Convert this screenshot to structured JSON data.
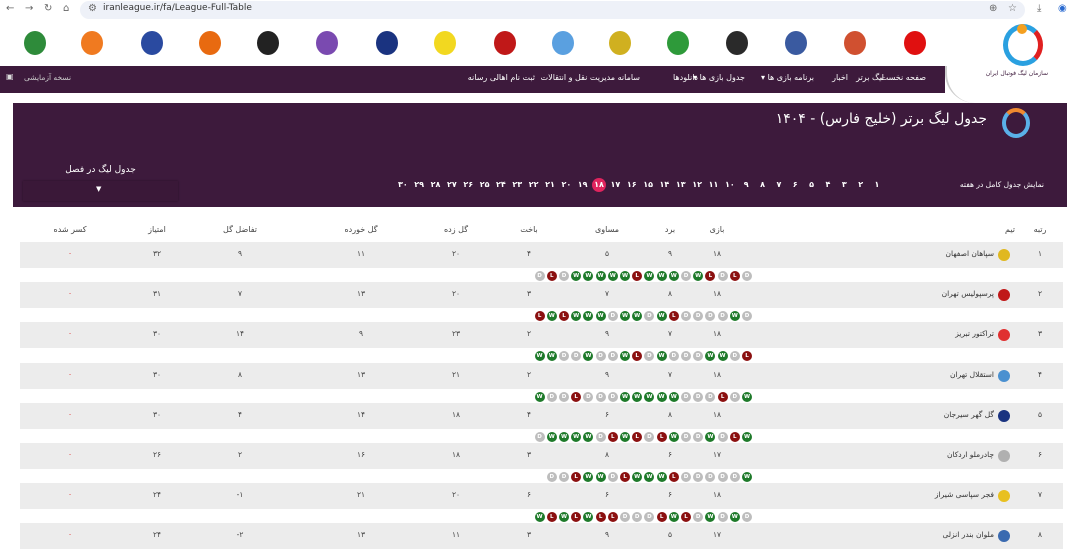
{
  "browser": {
    "url": "iranleague.ir/fa/League-Full-Table"
  },
  "team_logos": [
    "#2e8b3a",
    "#f07a20",
    "#2a4aa0",
    "#e86a10",
    "#222222",
    "#7a4ab0",
    "#1a3380",
    "#f2d820",
    "#c01818",
    "#5aa0e0",
    "#d0b020",
    "#2e9a3a",
    "#2a2a2a",
    "#3a5aa0",
    "#d05030",
    "#e01010"
  ],
  "nav": {
    "items": [
      "صفحه نخست",
      "لیگ برتر",
      "اخبار",
      "برنامه بازی ها ▾",
      "جدول بازی ها ▾",
      "دانلودها",
      "سامانه مدیریت نقل و انتقالات",
      "ثبت نام اهالی رسانه"
    ],
    "beta": "نسخه آزمایشی"
  },
  "title": "جدول لیگ برتر (خلیج فارس) - ۱۴۰۴",
  "weeks": {
    "label": "نمایش جدول کامل در هفته",
    "items": [
      "۱",
      "۲",
      "۳",
      "۴",
      "۵",
      "۶",
      "۷",
      "۸",
      "۹",
      "۱۰",
      "۱۱",
      "۱۲",
      "۱۳",
      "۱۴",
      "۱۵",
      "۱۶",
      "۱۷",
      "۱۸",
      "۱۹",
      "۲۰",
      "۲۱",
      "۲۲",
      "۲۳",
      "۲۴",
      "۲۵",
      "۲۶",
      "۲۷",
      "۲۸",
      "۲۹",
      "۳۰"
    ],
    "active": "۱۸"
  },
  "season": {
    "label": "جدول لیگ در فصل",
    "value": ""
  },
  "table": {
    "headers": {
      "rank": "رتبه",
      "team": "تیم",
      "played": "بازی",
      "won": "برد",
      "drawn": "مساوی",
      "lost": "باخت",
      "gf": "گل زده",
      "ga": "گل خورده",
      "gd": "تفاضل گل",
      "pts": "امتیاز",
      "ded": "کسر شده"
    },
    "rows": [
      {
        "rank": "۱",
        "team": "سپاهان اصفهان",
        "logo": "#e0b820",
        "played": "۱۸",
        "won": "۹",
        "drawn": "۵",
        "lost": "۴",
        "gf": "۲۰",
        "ga": "۱۱",
        "gd": "۹",
        "pts": "۳۲",
        "ded": "۰",
        "form": "DLDWWWWWLWWWDWLDLD"
      },
      {
        "rank": "۲",
        "team": "پرسپولیس تهران",
        "logo": "#c01818",
        "played": "۱۸",
        "won": "۸",
        "drawn": "۷",
        "lost": "۳",
        "gf": "۲۰",
        "ga": "۱۳",
        "gd": "۷",
        "pts": "۳۱",
        "ded": "۰",
        "form": "LWLWWWDWWDWLDDDDWD"
      },
      {
        "rank": "۳",
        "team": "تراکتور تبریز",
        "logo": "#e03030",
        "played": "۱۸",
        "won": "۷",
        "drawn": "۹",
        "lost": "۲",
        "gf": "۲۳",
        "ga": "۹",
        "gd": "۱۴",
        "pts": "۳۰",
        "ded": "۰",
        "form": "WWDDWDDWLDWDDDWWDL"
      },
      {
        "rank": "۴",
        "team": "استقلال تهران",
        "logo": "#4a90d0",
        "played": "۱۸",
        "won": "۷",
        "drawn": "۹",
        "lost": "۲",
        "gf": "۲۱",
        "ga": "۱۳",
        "gd": "۸",
        "pts": "۳۰",
        "ded": "۰",
        "form": "WDDLDDDWWWWWDDDLDW"
      },
      {
        "rank": "۵",
        "team": "گل گهر سیرجان",
        "logo": "#1a3380",
        "played": "۱۸",
        "won": "۸",
        "drawn": "۶",
        "lost": "۴",
        "gf": "۱۸",
        "ga": "۱۴",
        "gd": "۴",
        "pts": "۳۰",
        "ded": "۰",
        "form": "DWWWWDLWLDLWDDWDLW"
      },
      {
        "rank": "۶",
        "team": "چادرملو اردکان",
        "logo": "#b0b0b0",
        "played": "۱۷",
        "won": "۶",
        "drawn": "۸",
        "lost": "۳",
        "gf": "۱۸",
        "ga": "۱۶",
        "gd": "۲",
        "pts": "۲۶",
        "ded": "۰",
        "form": "DDLWWDLWWWLDDDDDW"
      },
      {
        "rank": "۷",
        "team": "فجر سپاسی شیراز",
        "logo": "#e8c020",
        "played": "۱۸",
        "won": "۶",
        "drawn": "۶",
        "lost": "۶",
        "gf": "۲۰",
        "ga": "۲۱",
        "gd": "-۱",
        "pts": "۲۴",
        "ded": "۰",
        "form": "WLWLWLLDDDLWLDWDWD"
      },
      {
        "rank": "۸",
        "team": "ملوان بندر انزلی",
        "logo": "#3a6ab0",
        "played": "۱۷",
        "won": "۵",
        "drawn": "۹",
        "lost": "۳",
        "gf": "۱۱",
        "ga": "۱۳",
        "gd": "-۲",
        "pts": "۲۴",
        "ded": "۰",
        "form": ""
      }
    ]
  },
  "colors": {
    "brand": "#3d1a3c",
    "active_week": "#e0245e",
    "win": "#1e7a2a",
    "loss": "#8b1010",
    "draw": "#bdbdbd"
  }
}
